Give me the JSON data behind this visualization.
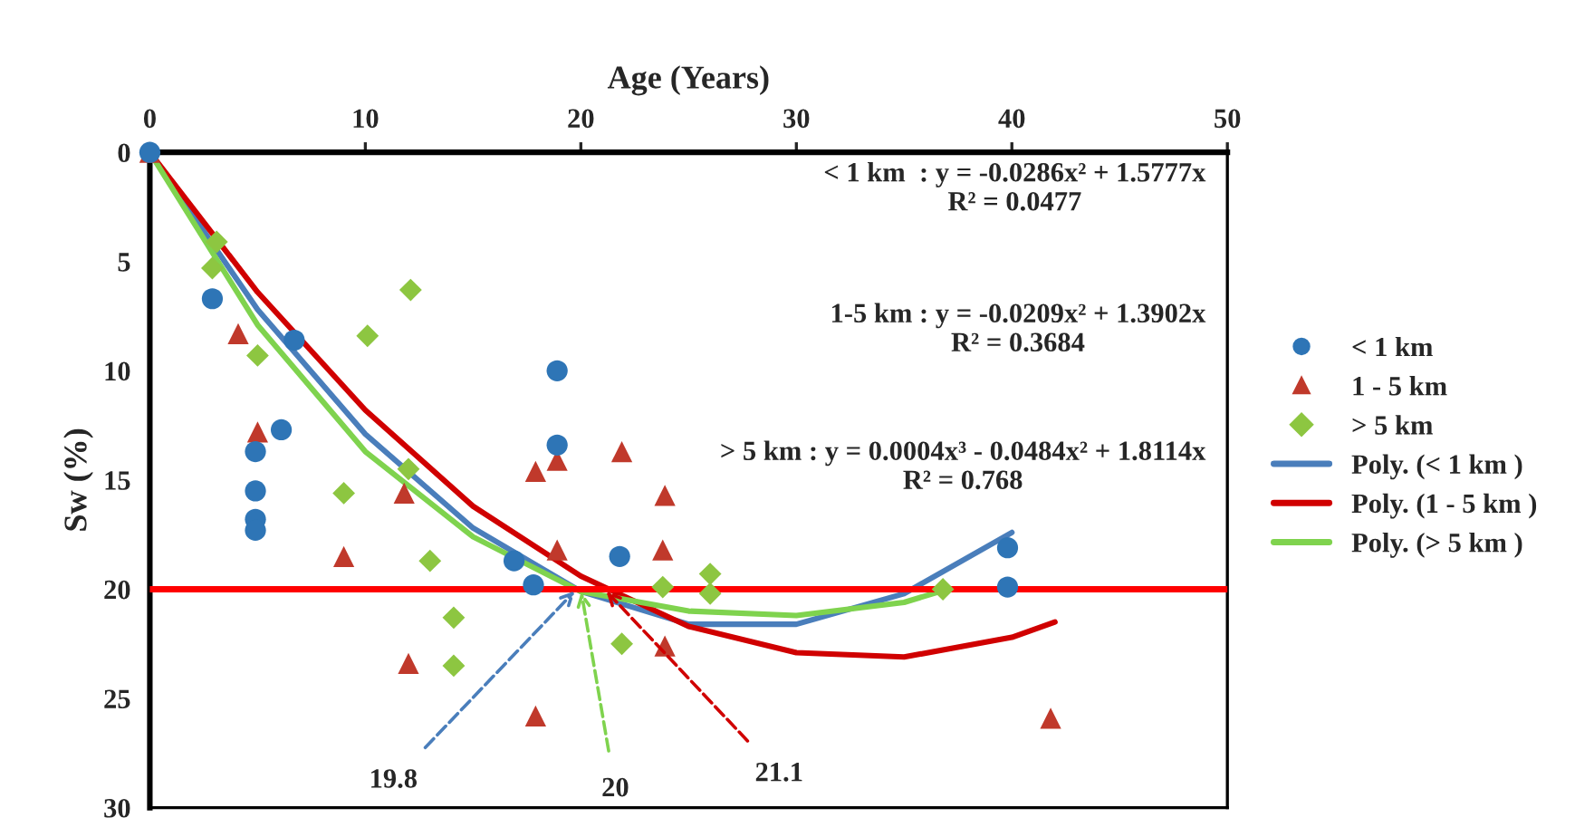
{
  "chart_data": {
    "type": "scatter",
    "xlabel": "Age (Years)",
    "ylabel": "Sw (%)",
    "xlim": [
      0,
      50
    ],
    "xticks": [
      0,
      10,
      20,
      30,
      40,
      50
    ],
    "ylim": [
      30,
      0
    ],
    "yticks": [
      0,
      5,
      10,
      15,
      20,
      25,
      30
    ],
    "grid": false,
    "legend": "right",
    "series": [
      {
        "name": "< 1 km",
        "marker": "circle",
        "color": "#2e75b6",
        "x": [
          0,
          2.9,
          6.7,
          6.1,
          4.9,
          4.9,
          4.9,
          4.9,
          18.9,
          18.9,
          16.9,
          17.8,
          21.8,
          39.8,
          39.8
        ],
        "values": [
          0,
          6.7,
          8.6,
          12.7,
          13.7,
          15.5,
          16.8,
          17.3,
          10,
          13.4,
          18.7,
          19.8,
          18.5,
          18.1,
          19.9
        ]
      },
      {
        "name": "1 - 5 km",
        "marker": "triangle",
        "color": "#c0392b",
        "x": [
          0,
          4.1,
          5.0,
          11.8,
          9.0,
          12.0,
          17.9,
          17.9,
          18.9,
          18.9,
          21.9,
          23.9,
          23.8,
          23.9,
          41.8
        ],
        "values": [
          0,
          8.3,
          12.8,
          15.6,
          18.5,
          23.4,
          25.8,
          14.6,
          14.1,
          18.2,
          13.7,
          15.7,
          18.2,
          22.6,
          25.9
        ]
      },
      {
        "name": "> 5 km",
        "marker": "diamond",
        "color": "#8dc641",
        "x": [
          3.1,
          2.9,
          5.0,
          10.1,
          12.1,
          9.0,
          12.0,
          13.0,
          14.1,
          14.1,
          21.9,
          23.8,
          26.0,
          26.0,
          36.8
        ],
        "values": [
          4.1,
          5.3,
          9.3,
          8.4,
          6.3,
          15.6,
          14.5,
          18.7,
          21.3,
          23.5,
          22.5,
          19.9,
          19.3,
          20.2,
          20.0
        ]
      },
      {
        "name": "Poly. (< 1 km )",
        "type": "line",
        "marker": "none",
        "line_style": "solid",
        "color": "#4a7ebb",
        "x": [
          0,
          5,
          10,
          15,
          20,
          25,
          30,
          35,
          40
        ],
        "values": [
          0,
          7.2,
          12.9,
          17.2,
          20.1,
          21.6,
          21.6,
          20.2,
          17.4
        ]
      },
      {
        "name": "Poly. (1 - 5 km )",
        "type": "line",
        "marker": "none",
        "line_style": "solid",
        "color": "#d00000",
        "x": [
          0,
          5,
          10,
          15,
          20,
          25,
          30,
          35,
          40,
          42
        ],
        "values": [
          0,
          6.4,
          11.8,
          16.2,
          19.4,
          21.7,
          22.9,
          23.1,
          22.2,
          21.5
        ]
      },
      {
        "name": "Poly. (> 5 km )",
        "type": "line",
        "marker": "none",
        "line_style": "solid",
        "color": "#7fd34e",
        "x": [
          0,
          5,
          10,
          15,
          20,
          25,
          30,
          35,
          37
        ],
        "values": [
          0,
          7.9,
          13.7,
          17.6,
          20.1,
          21.0,
          21.2,
          20.6,
          20.0
        ]
      }
    ],
    "ref_lines": [
      {
        "axis": "y",
        "value": 20,
        "color": "#ff0000",
        "line_style": "solid"
      }
    ],
    "annotations": [
      "< 1 km  : y = -0.0286x² + 1.5777x\nR² = 0.0477",
      "1-5 km : y = -0.0209x² + 1.3902x\nR² = 0.3684",
      "> 5 km : y = 0.0004x³ - 0.0484x² + 1.8114x\nR² = 0.768",
      {
        "text": "19.8",
        "x": 19.8,
        "y": 20
      },
      {
        "text": "21.1",
        "x": 21.1,
        "y": 20
      },
      {
        "text": "20",
        "x": 20,
        "y": 20
      }
    ]
  }
}
